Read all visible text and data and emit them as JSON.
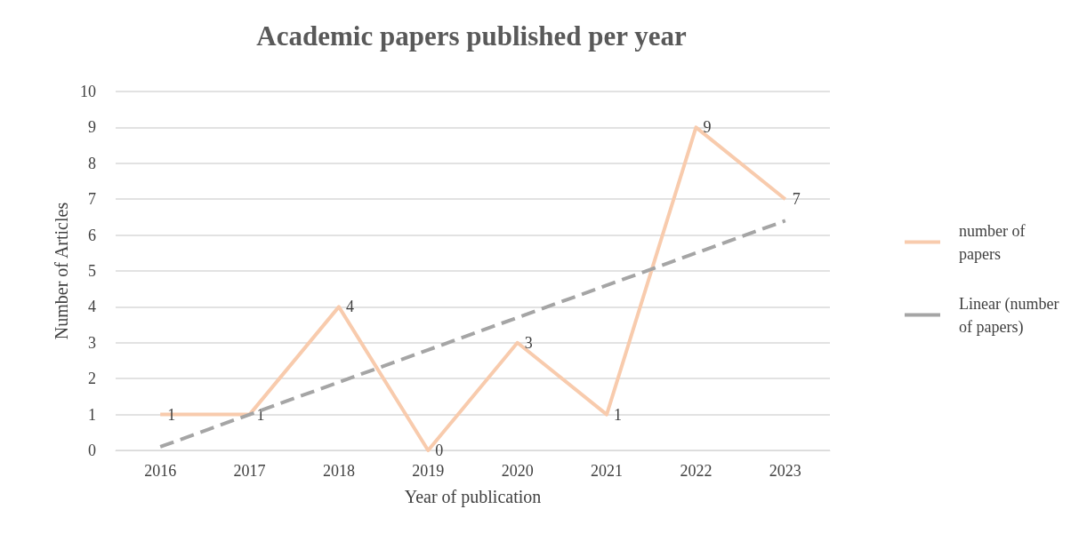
{
  "chart_data": {
    "type": "line",
    "title": "Academic papers published per year",
    "xlabel": "Year of publication",
    "ylabel": "Number of Articles",
    "categories": [
      "2016",
      "2017",
      "2018",
      "2019",
      "2020",
      "2021",
      "2022",
      "2023"
    ],
    "series": [
      {
        "name": "number of papers",
        "color": "#f8cbad",
        "values": [
          1,
          1,
          4,
          0,
          3,
          1,
          9,
          7
        ],
        "value_labels": [
          "1",
          "1",
          "4",
          "0",
          "3",
          "1",
          "9",
          "7"
        ],
        "line_style": "solid"
      },
      {
        "name": "Linear (number of papers)",
        "color": "#a5a5a5",
        "values": [
          0.1,
          1.0,
          1.9,
          2.8,
          3.7,
          4.6,
          5.5,
          6.4
        ],
        "line_style": "dashed"
      }
    ],
    "ylim": [
      0,
      10
    ],
    "yticks": [
      0,
      1,
      2,
      3,
      4,
      5,
      6,
      7,
      8,
      9,
      10
    ],
    "grid": "y",
    "legend": "right",
    "marker": "none"
  }
}
